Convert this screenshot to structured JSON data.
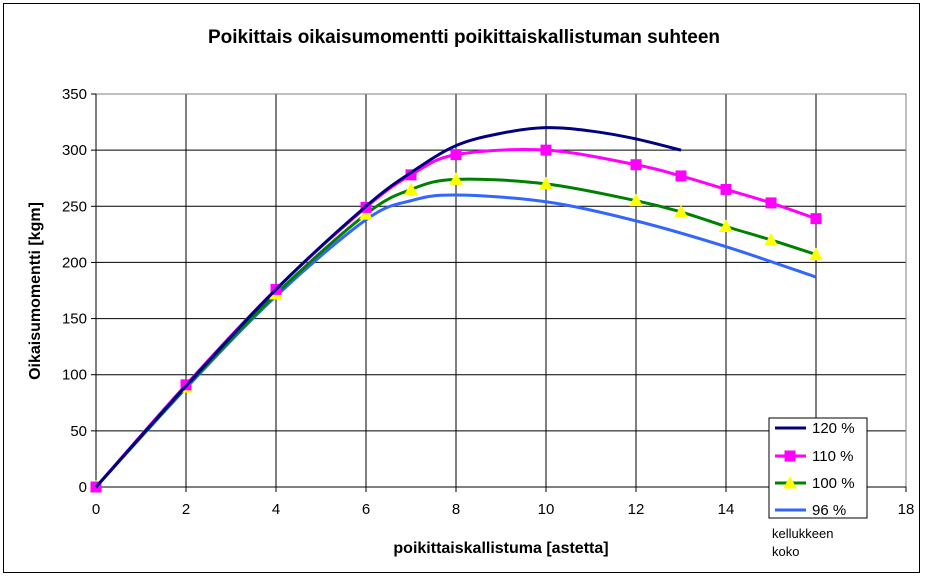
{
  "chart_data": {
    "type": "line",
    "title": "Poikittais oikaisumomentti poikittaiskallistuman suhteen",
    "xlabel": "poikittaiskallistuma [astetta]",
    "ylabel": "Oikaisumomentti [kgm]",
    "xlim": [
      0,
      18
    ],
    "ylim": [
      0,
      350
    ],
    "xticks": [
      0,
      2,
      4,
      6,
      8,
      10,
      12,
      14,
      16,
      18
    ],
    "yticks": [
      0,
      50,
      100,
      150,
      200,
      250,
      300,
      350
    ],
    "grid": "vertical and horizontal major gridlines",
    "legend_position": "lower-right",
    "legend_note": "kellukkeen koko",
    "series": [
      {
        "name": "120 %",
        "color": "#000080",
        "marker": "none",
        "x": [
          0,
          2,
          4,
          6,
          7,
          8,
          9,
          10,
          11,
          12,
          13
        ],
        "y": [
          0,
          90,
          176,
          250,
          280,
          304,
          315,
          320,
          317,
          310,
          300
        ]
      },
      {
        "name": "110 %",
        "color": "#FF00FF",
        "marker": "square",
        "x": [
          0,
          2,
          4,
          6,
          7,
          8,
          10,
          12,
          13,
          14,
          15,
          16
        ],
        "y": [
          0,
          91,
          176,
          249,
          278,
          296,
          300,
          287,
          277,
          265,
          253,
          239
        ]
      },
      {
        "name": "100 %",
        "color": "#008000",
        "marker": "triangle",
        "marker_color": "#FFFF00",
        "x": [
          0,
          2,
          4,
          6,
          7,
          8,
          10,
          12,
          13,
          14,
          15,
          16
        ],
        "y": [
          0,
          89,
          172,
          243,
          265,
          274,
          270,
          255,
          245,
          232,
          220,
          207
        ]
      },
      {
        "name": "96 %",
        "color": "#3366FF",
        "marker": "none",
        "x": [
          0,
          2,
          4,
          6,
          7,
          8,
          10,
          12,
          14,
          16
        ],
        "y": [
          0,
          88,
          170,
          238,
          255,
          260,
          254,
          237,
          214,
          187
        ]
      }
    ]
  }
}
